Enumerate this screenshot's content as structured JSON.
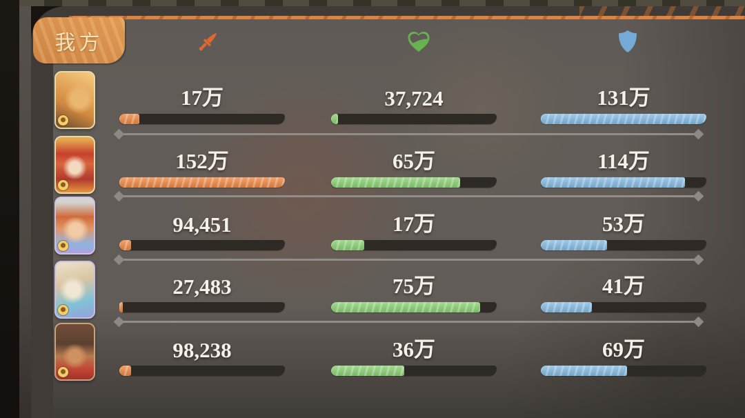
{
  "panel": {
    "tab_label": "我方",
    "columns": [
      {
        "id": "attack",
        "icon": "sword-icon",
        "color": "#ef8843"
      },
      {
        "id": "healing",
        "icon": "heart-icon",
        "color": "#8ad173"
      },
      {
        "id": "defense",
        "icon": "shield-icon",
        "color": "#85bbe2"
      }
    ]
  },
  "colors": {
    "attack_fill": "#ef8843",
    "heal_fill": "#8ad173",
    "defense_fill": "#85bbe2",
    "bar_track": "#2d2a26",
    "tab_orange": "#d9914f",
    "accent_stripe": "#df8440",
    "value_text": "#f4f1ea"
  },
  "rows": [
    {
      "character": "lion-warrior",
      "stats": [
        {
          "value": "17万",
          "pct": 12
        },
        {
          "value": "37,724",
          "pct": 4
        },
        {
          "value": "131万",
          "pct": 100
        }
      ]
    },
    {
      "character": "red-haired-sorceress",
      "stats": [
        {
          "value": "152万",
          "pct": 100
        },
        {
          "value": "65万",
          "pct": 78
        },
        {
          "value": "114万",
          "pct": 87
        }
      ]
    },
    {
      "character": "red-haired-youth",
      "stats": [
        {
          "value": "94,451",
          "pct": 7
        },
        {
          "value": "17万",
          "pct": 20
        },
        {
          "value": "53万",
          "pct": 40
        }
      ]
    },
    {
      "character": "beast-companion",
      "stats": [
        {
          "value": "27,483",
          "pct": 2
        },
        {
          "value": "75万",
          "pct": 90
        },
        {
          "value": "41万",
          "pct": 31
        }
      ]
    },
    {
      "character": "brown-haired-fighter",
      "stats": [
        {
          "value": "98,238",
          "pct": 7
        },
        {
          "value": "36万",
          "pct": 44
        },
        {
          "value": "69万",
          "pct": 52
        }
      ]
    }
  ]
}
